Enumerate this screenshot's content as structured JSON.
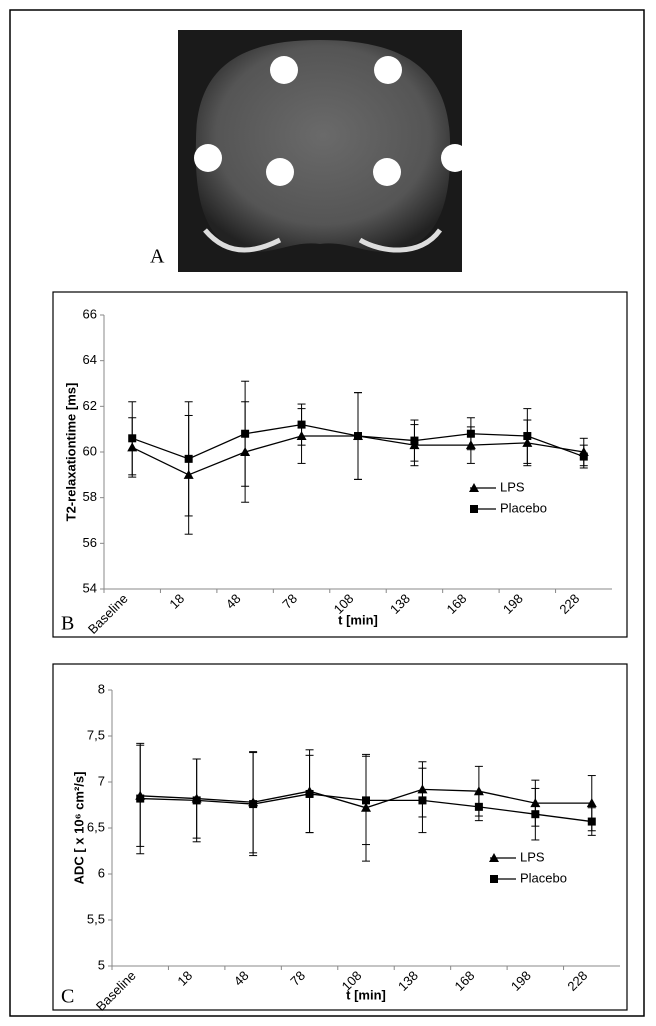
{
  "image_panel": {
    "label": "A"
  },
  "chart_data": [
    {
      "type": "line",
      "panel_label": "B",
      "y_label": "T2-relaxationtime [ms]",
      "x_label": "t [min]",
      "categories": [
        "Baseline",
        "18",
        "48",
        "78",
        "108",
        "138",
        "168",
        "198",
        "228"
      ],
      "ylim": [
        54,
        66
      ],
      "yticks": [
        54,
        56,
        58,
        60,
        62,
        64,
        66
      ],
      "grid": false,
      "legend": "right",
      "series": [
        {
          "name": "LPS",
          "color": "#000000",
          "marker": "triangle",
          "values": [
            60.2,
            59.0,
            60.0,
            60.7,
            60.7,
            60.3,
            60.3,
            60.4,
            60.0
          ],
          "errors": [
            1.3,
            2.6,
            2.2,
            1.2,
            1.9,
            0.9,
            0.8,
            1.0,
            0.6
          ]
        },
        {
          "name": "Placebo",
          "color": "#000000",
          "marker": "square",
          "values": [
            60.6,
            59.7,
            60.8,
            61.2,
            60.7,
            60.5,
            60.8,
            60.7,
            59.8
          ],
          "errors": [
            1.6,
            2.5,
            2.3,
            0.9,
            1.9,
            0.9,
            0.7,
            1.2,
            0.5
          ]
        }
      ]
    },
    {
      "type": "line",
      "panel_label": "C",
      "y_label": "ADC [ x 10⁶ cm²/s]",
      "x_label": "t [min]",
      "categories": [
        "Baseline",
        "18",
        "48",
        "78",
        "108",
        "138",
        "168",
        "198",
        "228"
      ],
      "ylim": [
        5,
        8
      ],
      "yticks": [
        5,
        {
          "value": 5.5,
          "label": "5,5"
        },
        6,
        {
          "value": 6.5,
          "label": "6,5"
        },
        7,
        {
          "value": 7.5,
          "label": "7,5"
        },
        8
      ],
      "grid": false,
      "legend": "right",
      "series": [
        {
          "name": "LPS",
          "color": "#000000",
          "marker": "triangle",
          "values": [
            6.85,
            6.82,
            6.78,
            6.9,
            6.72,
            6.92,
            6.9,
            6.77,
            6.77
          ],
          "errors": [
            0.55,
            0.43,
            0.55,
            0.45,
            0.58,
            0.3,
            0.27,
            0.25,
            0.3
          ]
        },
        {
          "name": "Placebo",
          "color": "#000000",
          "marker": "square",
          "values": [
            6.82,
            6.8,
            6.76,
            6.87,
            6.8,
            6.8,
            6.73,
            6.65,
            6.57
          ],
          "errors": [
            0.6,
            0.45,
            0.56,
            0.42,
            0.48,
            0.35,
            0.15,
            0.28,
            0.15
          ]
        }
      ]
    }
  ]
}
